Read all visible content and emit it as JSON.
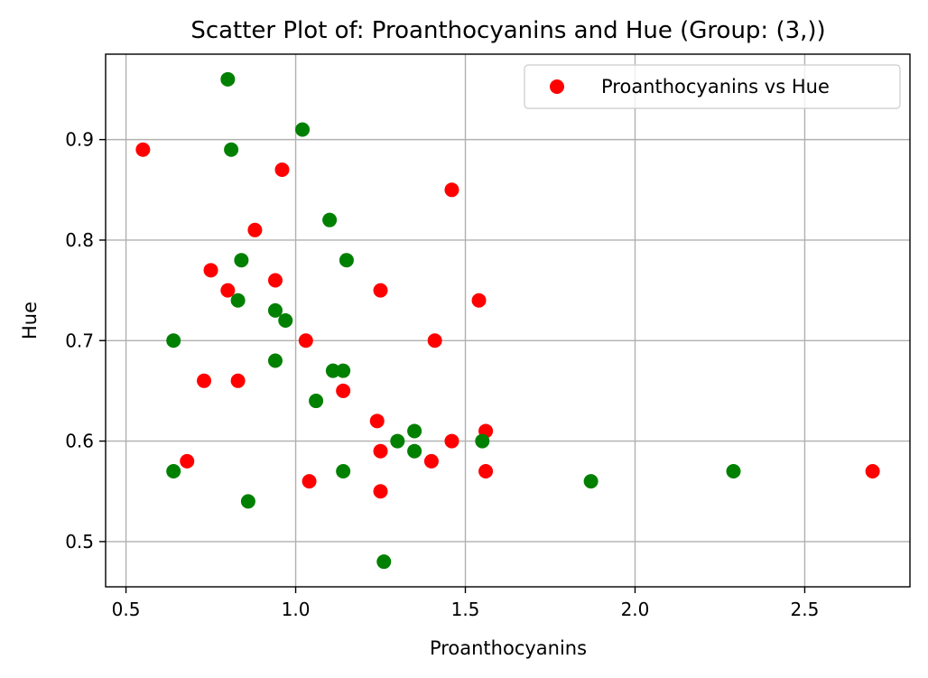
{
  "chart_data": {
    "type": "scatter",
    "title": "Scatter Plot of: Proanthocyanins and Hue (Group: (3,))",
    "xlabel": "Proanthocyanins",
    "ylabel": "Hue",
    "xlim": [
      0.44,
      2.81
    ],
    "ylim": [
      0.455,
      0.985
    ],
    "xticks": [
      0.5,
      1.0,
      1.5,
      2.0,
      2.5
    ],
    "xtick_labels": [
      "0.5",
      "1.0",
      "1.5",
      "2.0",
      "2.5"
    ],
    "yticks": [
      0.5,
      0.6,
      0.7,
      0.8,
      0.9
    ],
    "ytick_labels": [
      "0.5",
      "0.6",
      "0.7",
      "0.8",
      "0.9"
    ],
    "grid": true,
    "legend_position": "top-right",
    "series": [
      {
        "name": "Proanthocyanins vs Hue",
        "color": "#ff0000",
        "points": [
          [
            0.55,
            0.89
          ],
          [
            0.96,
            0.87
          ],
          [
            0.88,
            0.81
          ],
          [
            0.75,
            0.77
          ],
          [
            0.8,
            0.75
          ],
          [
            0.94,
            0.76
          ],
          [
            1.46,
            0.85
          ],
          [
            1.25,
            0.75
          ],
          [
            1.54,
            0.74
          ],
          [
            1.03,
            0.7
          ],
          [
            1.41,
            0.7
          ],
          [
            0.73,
            0.66
          ],
          [
            0.83,
            0.66
          ],
          [
            1.14,
            0.65
          ],
          [
            1.24,
            0.62
          ],
          [
            1.56,
            0.61
          ],
          [
            1.46,
            0.6
          ],
          [
            1.25,
            0.59
          ],
          [
            1.4,
            0.58
          ],
          [
            0.68,
            0.58
          ],
          [
            1.56,
            0.57
          ],
          [
            1.04,
            0.56
          ],
          [
            1.25,
            0.55
          ],
          [
            2.7,
            0.57
          ]
        ]
      },
      {
        "color": "#008000",
        "points": [
          [
            0.8,
            0.96
          ],
          [
            1.02,
            0.91
          ],
          [
            0.81,
            0.89
          ],
          [
            1.1,
            0.82
          ],
          [
            0.84,
            0.78
          ],
          [
            1.15,
            0.78
          ],
          [
            0.83,
            0.74
          ],
          [
            0.94,
            0.73
          ],
          [
            0.97,
            0.72
          ],
          [
            0.64,
            0.7
          ],
          [
            0.94,
            0.68
          ],
          [
            1.11,
            0.67
          ],
          [
            1.14,
            0.67
          ],
          [
            1.06,
            0.64
          ],
          [
            1.35,
            0.61
          ],
          [
            1.3,
            0.6
          ],
          [
            1.35,
            0.59
          ],
          [
            1.55,
            0.6
          ],
          [
            0.64,
            0.57
          ],
          [
            1.14,
            0.57
          ],
          [
            0.86,
            0.54
          ],
          [
            1.87,
            0.56
          ],
          [
            2.29,
            0.57
          ],
          [
            1.26,
            0.48
          ]
        ]
      }
    ]
  }
}
